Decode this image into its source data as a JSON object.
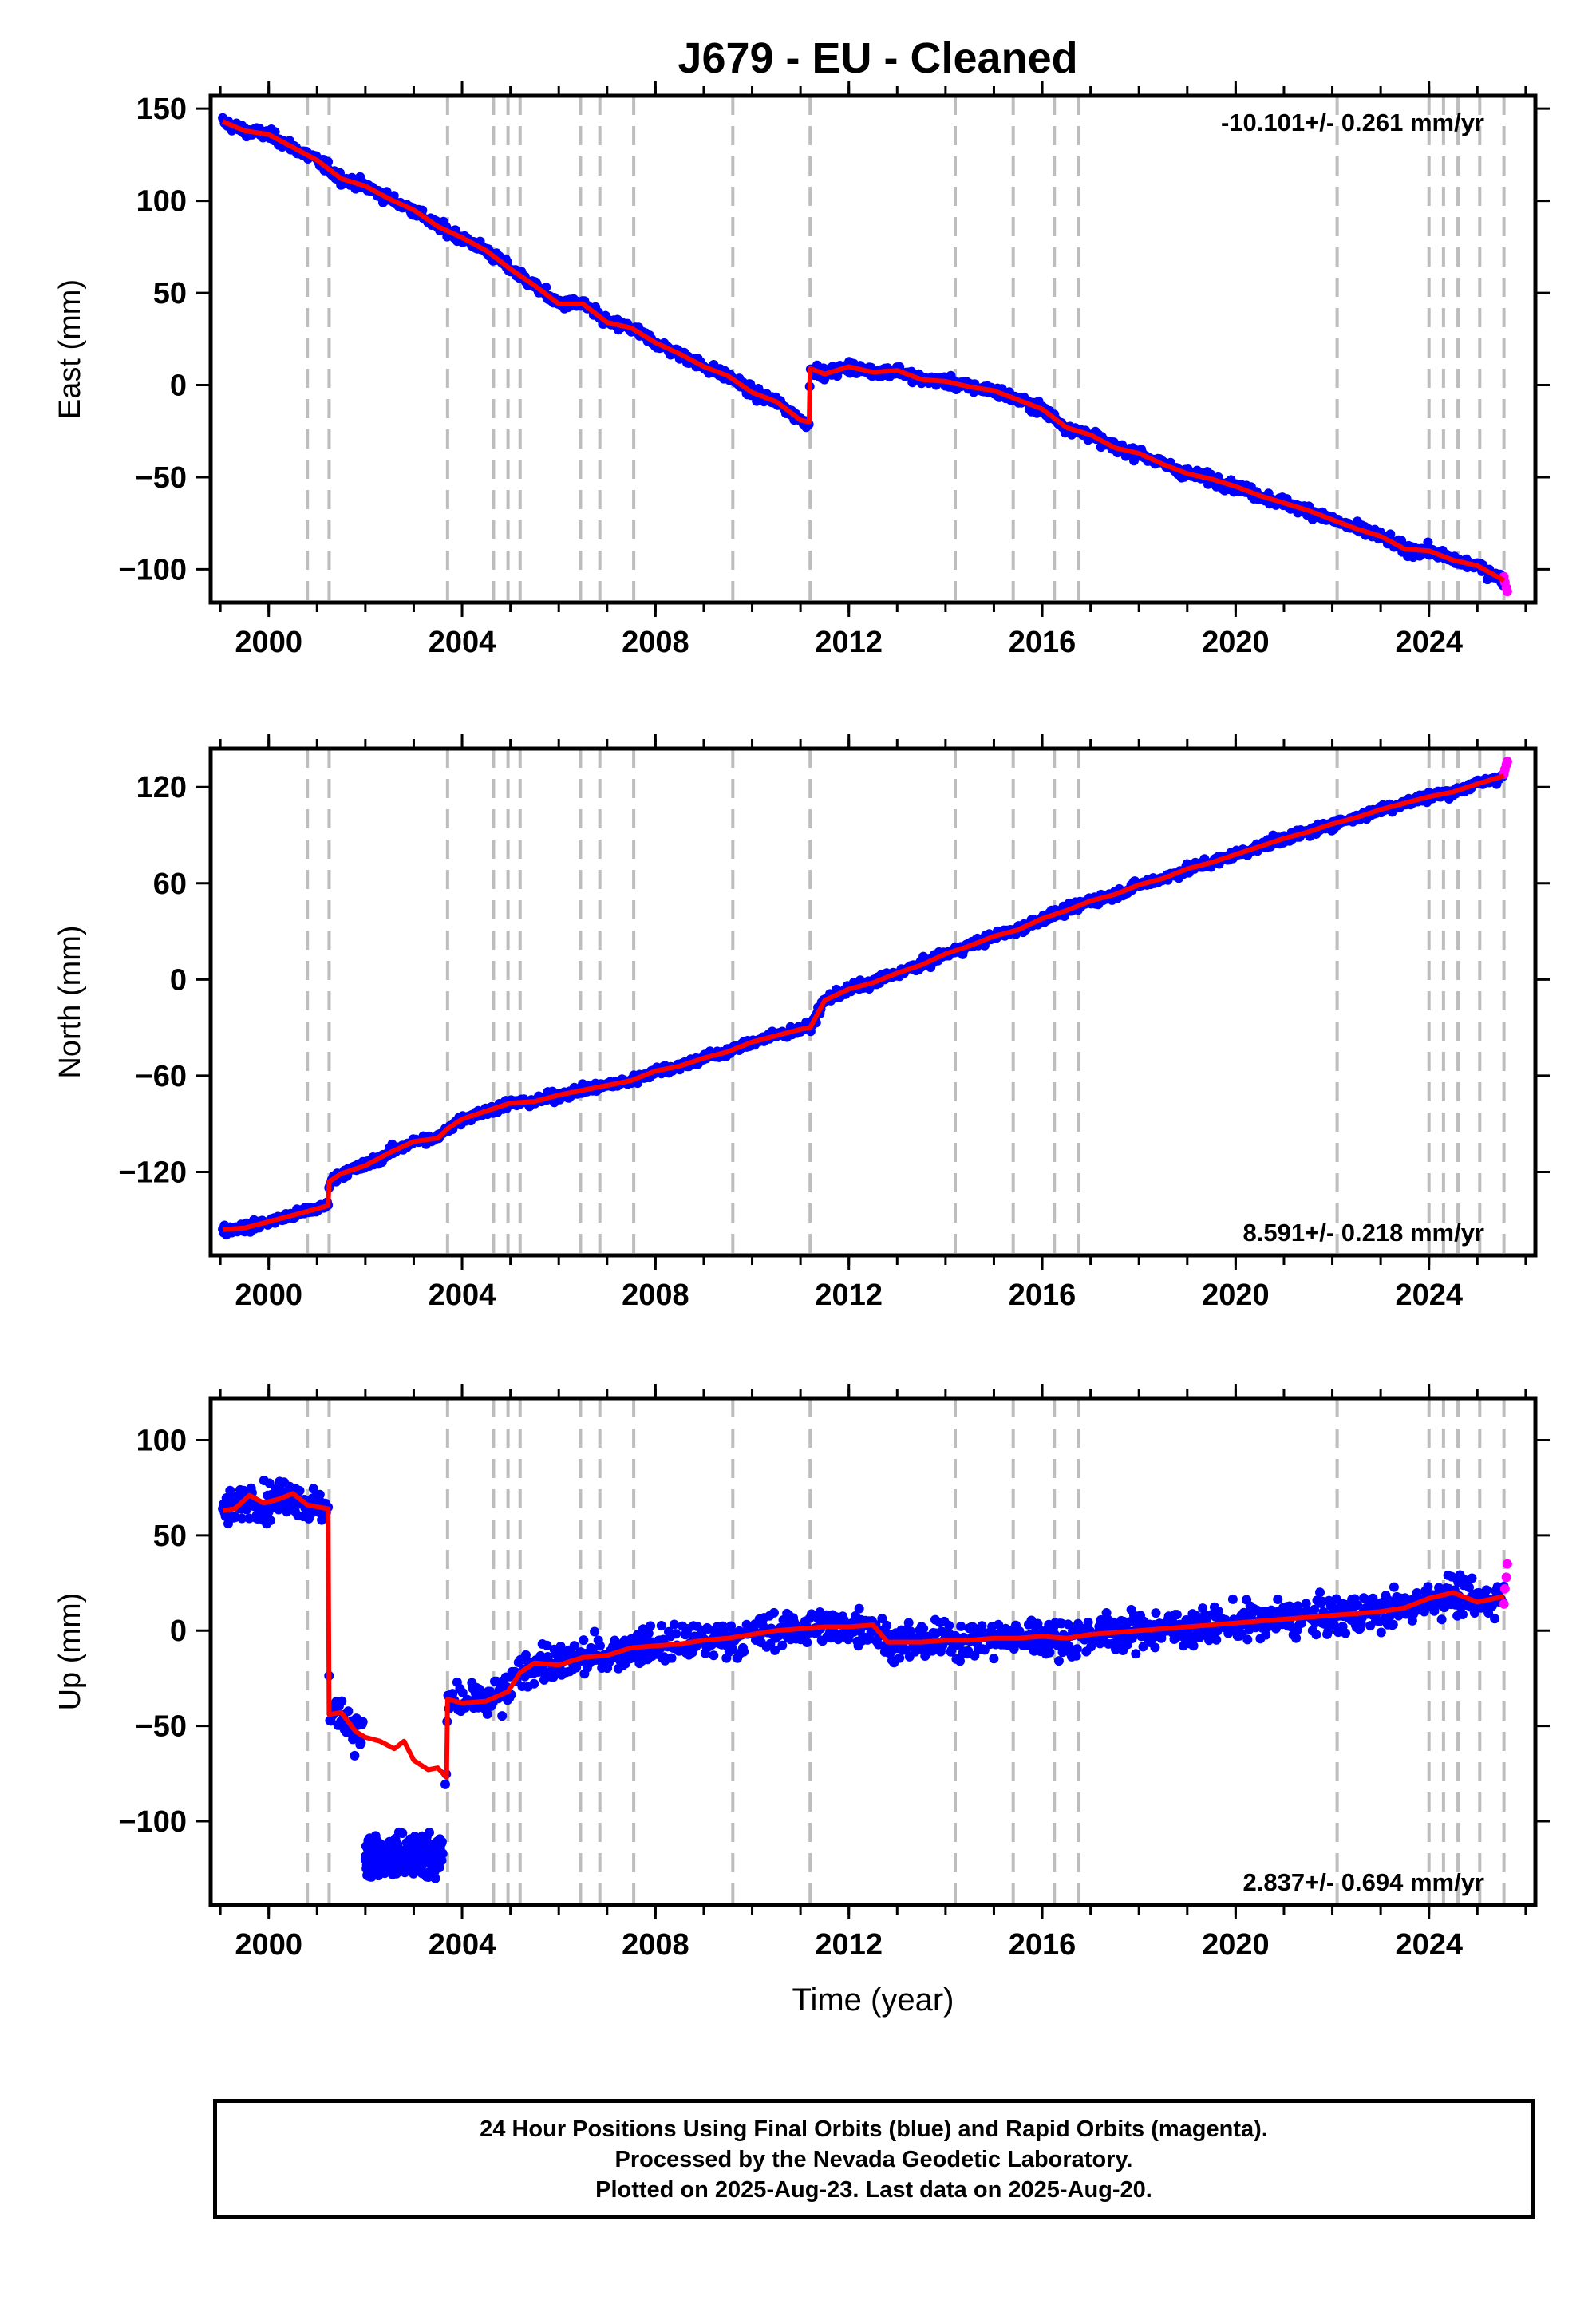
{
  "title": "J679  - EU - Cleaned",
  "footer": {
    "line1": "24 Hour Positions Using Final Orbits (blue) and Rapid Orbits (magenta).",
    "line2": "Processed by the Nevada Geodetic Laboratory.",
    "line3": "Plotted on 2025-Aug-23. Last data on 2025-Aug-20."
  },
  "colors": {
    "final_points": "#0000ff",
    "rapid_points": "#ff00ff",
    "model_line": "#ff0000",
    "event_lines": "#bdbdbd",
    "frame": "#000000"
  },
  "chart_data": [
    {
      "type": "scatter",
      "ylabel": "East (mm)",
      "xlabel": "",
      "xlim": [
        1998.8,
        2026.2
      ],
      "ylim": [
        -118,
        157
      ],
      "xticks": [
        2000,
        2004,
        2008,
        2012,
        2016,
        2020,
        2024
      ],
      "yticks": [
        -100,
        -50,
        0,
        50,
        100,
        150
      ],
      "rate_label": "-10.101+/- 0.261 mm/yr",
      "rate_position": "top-right",
      "event_lines": [
        2000.8,
        2001.25,
        2003.7,
        2004.65,
        2004.95,
        2005.2,
        2006.45,
        2006.85,
        2007.55,
        2009.6,
        2011.2,
        2014.2,
        2015.4,
        2016.25,
        2016.75,
        2022.1,
        2024.0,
        2024.3,
        2024.6,
        2025.05,
        2025.55
      ],
      "model": [
        [
          1999.05,
          143
        ],
        [
          1999.5,
          138
        ],
        [
          2000.0,
          136
        ],
        [
          2000.5,
          129
        ],
        [
          2001.0,
          122
        ],
        [
          2001.5,
          112
        ],
        [
          2002.0,
          108
        ],
        [
          2002.5,
          101
        ],
        [
          2003.0,
          95
        ],
        [
          2003.5,
          86
        ],
        [
          2004.0,
          80
        ],
        [
          2004.5,
          73
        ],
        [
          2005.0,
          63
        ],
        [
          2005.5,
          54
        ],
        [
          2006.0,
          44
        ],
        [
          2006.5,
          44
        ],
        [
          2007.0,
          34
        ],
        [
          2007.5,
          31
        ],
        [
          2008.0,
          23
        ],
        [
          2008.5,
          17
        ],
        [
          2009.0,
          10
        ],
        [
          2009.5,
          5
        ],
        [
          2010.0,
          -4
        ],
        [
          2010.5,
          -9
        ],
        [
          2011.0,
          -19
        ],
        [
          2011.18,
          -20
        ],
        [
          2011.2,
          9
        ],
        [
          2011.5,
          6
        ],
        [
          2012.0,
          10
        ],
        [
          2012.5,
          7
        ],
        [
          2013.0,
          8
        ],
        [
          2013.5,
          3
        ],
        [
          2014.0,
          2
        ],
        [
          2014.5,
          -1
        ],
        [
          2015.0,
          -3
        ],
        [
          2015.5,
          -8
        ],
        [
          2016.0,
          -13
        ],
        [
          2016.5,
          -23
        ],
        [
          2017.0,
          -27
        ],
        [
          2017.5,
          -34
        ],
        [
          2018.0,
          -37
        ],
        [
          2018.5,
          -43
        ],
        [
          2019.0,
          -48
        ],
        [
          2019.5,
          -51
        ],
        [
          2020.0,
          -55
        ],
        [
          2020.5,
          -60
        ],
        [
          2021.0,
          -64
        ],
        [
          2021.5,
          -68
        ],
        [
          2022.0,
          -73
        ],
        [
          2022.5,
          -78
        ],
        [
          2023.0,
          -82
        ],
        [
          2023.5,
          -89
        ],
        [
          2024.0,
          -90
        ],
        [
          2024.5,
          -95
        ],
        [
          2025.0,
          -98
        ],
        [
          2025.55,
          -106
        ]
      ],
      "noise_mm": 2.5,
      "rapid": [
        [
          2025.55,
          -104
        ],
        [
          2025.57,
          -107
        ],
        [
          2025.6,
          -110
        ],
        [
          2025.62,
          -112
        ]
      ]
    },
    {
      "type": "scatter",
      "ylabel": "North (mm)",
      "xlabel": "",
      "xlim": [
        1998.8,
        2026.2
      ],
      "ylim": [
        -172,
        144
      ],
      "xticks": [
        2000,
        2004,
        2008,
        2012,
        2016,
        2020,
        2024
      ],
      "yticks": [
        -120,
        -60,
        0,
        60,
        120
      ],
      "rate_label": "8.591+/- 0.218 mm/yr",
      "rate_position": "bottom-right",
      "event_lines": [
        2000.8,
        2001.25,
        2003.7,
        2004.65,
        2004.95,
        2005.2,
        2006.45,
        2006.85,
        2007.55,
        2009.6,
        2011.2,
        2014.2,
        2015.4,
        2016.25,
        2016.75,
        2022.1,
        2024.0,
        2024.3,
        2024.6,
        2025.05,
        2025.55
      ],
      "model": [
        [
          1999.05,
          -156
        ],
        [
          1999.5,
          -155
        ],
        [
          2000.0,
          -151
        ],
        [
          2000.5,
          -147
        ],
        [
          2001.0,
          -143
        ],
        [
          2001.23,
          -141
        ],
        [
          2001.25,
          -126
        ],
        [
          2001.5,
          -121
        ],
        [
          2002.0,
          -116
        ],
        [
          2002.5,
          -108
        ],
        [
          2003.0,
          -101
        ],
        [
          2003.5,
          -99
        ],
        [
          2003.7,
          -93
        ],
        [
          2004.0,
          -87
        ],
        [
          2004.5,
          -82
        ],
        [
          2005.0,
          -77
        ],
        [
          2005.5,
          -76
        ],
        [
          2006.0,
          -72
        ],
        [
          2006.5,
          -69
        ],
        [
          2007.0,
          -66
        ],
        [
          2007.5,
          -63
        ],
        [
          2008.0,
          -57
        ],
        [
          2008.5,
          -54
        ],
        [
          2009.0,
          -49
        ],
        [
          2009.5,
          -45
        ],
        [
          2010.0,
          -39
        ],
        [
          2010.5,
          -35
        ],
        [
          2011.0,
          -31
        ],
        [
          2011.2,
          -30
        ],
        [
          2011.5,
          -13
        ],
        [
          2012.0,
          -6
        ],
        [
          2012.5,
          -2
        ],
        [
          2013.0,
          4
        ],
        [
          2013.5,
          9
        ],
        [
          2014.0,
          16
        ],
        [
          2014.5,
          21
        ],
        [
          2015.0,
          27
        ],
        [
          2015.5,
          31
        ],
        [
          2016.0,
          38
        ],
        [
          2016.5,
          43
        ],
        [
          2017.0,
          49
        ],
        [
          2017.5,
          53
        ],
        [
          2018.0,
          59
        ],
        [
          2018.5,
          63
        ],
        [
          2019.0,
          69
        ],
        [
          2019.5,
          73
        ],
        [
          2020.0,
          78
        ],
        [
          2020.5,
          83
        ],
        [
          2021.0,
          88
        ],
        [
          2021.5,
          92
        ],
        [
          2022.0,
          97
        ],
        [
          2022.5,
          101
        ],
        [
          2023.0,
          106
        ],
        [
          2023.5,
          110
        ],
        [
          2024.0,
          114
        ],
        [
          2024.5,
          117
        ],
        [
          2025.0,
          122
        ],
        [
          2025.55,
          127
        ]
      ],
      "noise_mm": 2.5,
      "rapid": [
        [
          2025.55,
          128
        ],
        [
          2025.57,
          131
        ],
        [
          2025.6,
          134
        ],
        [
          2025.62,
          136
        ]
      ]
    },
    {
      "type": "scatter",
      "ylabel": "Up (mm)",
      "xlabel": "Time (year)",
      "xlim": [
        1998.8,
        2026.2
      ],
      "ylim": [
        -144,
        122
      ],
      "xticks": [
        2000,
        2004,
        2008,
        2012,
        2016,
        2020,
        2024
      ],
      "yticks": [
        -100,
        -50,
        0,
        50,
        100
      ],
      "rate_label": "2.837+/- 0.694 mm/yr",
      "rate_position": "bottom-right",
      "event_lines": [
        2000.8,
        2001.25,
        2003.7,
        2004.65,
        2004.95,
        2005.2,
        2006.45,
        2006.85,
        2007.55,
        2009.6,
        2011.2,
        2014.2,
        2015.4,
        2016.25,
        2016.75,
        2022.1,
        2024.0,
        2024.3,
        2024.6,
        2025.05,
        2025.55
      ],
      "model": [
        [
          1999.05,
          63
        ],
        [
          1999.3,
          64
        ],
        [
          1999.6,
          71
        ],
        [
          1999.9,
          67
        ],
        [
          2000.2,
          69
        ],
        [
          2000.5,
          72
        ],
        [
          2000.8,
          66
        ],
        [
          2001.0,
          65
        ],
        [
          2001.23,
          64
        ],
        [
          2001.25,
          -44
        ],
        [
          2001.5,
          -43
        ],
        [
          2001.8,
          -53
        ],
        [
          2002.0,
          -56
        ],
        [
          2002.3,
          -58
        ],
        [
          2002.6,
          -62
        ],
        [
          2002.8,
          -58
        ],
        [
          2003.0,
          -68
        ],
        [
          2003.3,
          -73
        ],
        [
          2003.5,
          -72
        ],
        [
          2003.68,
          -77
        ],
        [
          2003.7,
          -36
        ],
        [
          2004.0,
          -38
        ],
        [
          2004.5,
          -37
        ],
        [
          2004.95,
          -32
        ],
        [
          2005.2,
          -22
        ],
        [
          2005.5,
          -17
        ],
        [
          2006.0,
          -18
        ],
        [
          2006.5,
          -14
        ],
        [
          2007.0,
          -13
        ],
        [
          2007.5,
          -9
        ],
        [
          2008.0,
          -8
        ],
        [
          2008.5,
          -7
        ],
        [
          2009.0,
          -5
        ],
        [
          2009.5,
          -4
        ],
        [
          2010.0,
          -2
        ],
        [
          2010.5,
          0
        ],
        [
          2011.0,
          1
        ],
        [
          2011.5,
          2
        ],
        [
          2012.0,
          2
        ],
        [
          2012.5,
          3
        ],
        [
          2012.8,
          -6
        ],
        [
          2013.5,
          -6
        ],
        [
          2014.0,
          -5
        ],
        [
          2014.5,
          -5
        ],
        [
          2015.0,
          -4
        ],
        [
          2015.5,
          -4
        ],
        [
          2016.0,
          -3
        ],
        [
          2016.5,
          -4
        ],
        [
          2017.0,
          -2
        ],
        [
          2017.5,
          -1
        ],
        [
          2018.0,
          0
        ],
        [
          2018.5,
          1
        ],
        [
          2019.0,
          2
        ],
        [
          2019.5,
          3
        ],
        [
          2020.0,
          4
        ],
        [
          2020.5,
          5
        ],
        [
          2021.0,
          6
        ],
        [
          2021.5,
          7
        ],
        [
          2022.0,
          8
        ],
        [
          2022.5,
          9
        ],
        [
          2023.0,
          10
        ],
        [
          2023.5,
          12
        ],
        [
          2024.0,
          17
        ],
        [
          2024.5,
          20
        ],
        [
          2025.0,
          15
        ],
        [
          2025.55,
          18
        ]
      ],
      "noise_mm": 8,
      "offset_segment": {
        "x_start": 2002.0,
        "x_end": 2003.6,
        "center": -118,
        "noise_mm": 10
      },
      "rapid": [
        [
          2025.55,
          14
        ],
        [
          2025.57,
          22
        ],
        [
          2025.6,
          28
        ],
        [
          2025.62,
          35
        ]
      ]
    }
  ]
}
